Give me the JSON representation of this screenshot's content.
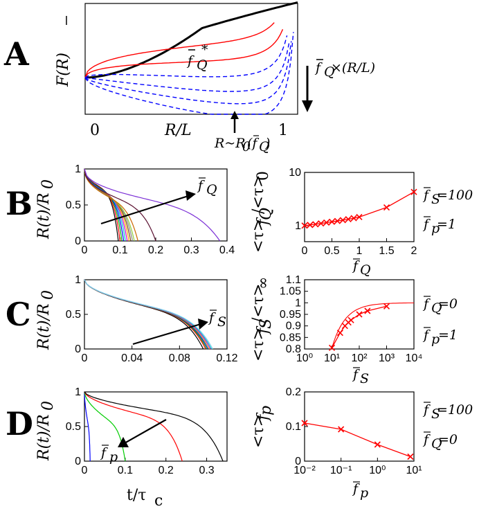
{
  "colors": {
    "red": "#ff0000",
    "blue": "#0000ff",
    "black": "#000000",
    "green": "#00cc00",
    "purple": "#7b2fd6"
  },
  "panels": {
    "A": "A",
    "B": "B",
    "C": "C",
    "D": "D"
  },
  "panelA": {
    "ylabel": "F(R)",
    "xlabel": "R/L",
    "x0": "0",
    "x1": "1",
    "curve_label": "f",
    "curve_label_sub": "Q",
    "curve_label_sup": "*",
    "arrow_label_f": "f",
    "arrow_label_sub": "Q",
    "arrow_label_rest": "×(R/L)",
    "min_label_a": "R~R",
    "min_label_sub": "0",
    "min_label_b": "(f",
    "min_label_sub2": "Q",
    "min_label_c": ")"
  },
  "params": {
    "B_fs": "f",
    "B_fs_sub": "S",
    "B_fs_val": "=100",
    "B_fp": "f",
    "B_fp_sub": "p",
    "B_fp_val": "=1",
    "C_fq": "f",
    "C_fq_sub": "Q",
    "C_fq_val": "=0",
    "C_fp": "f",
    "C_fp_sub": "p",
    "C_fp_val": "=1",
    "D_fs": "f",
    "D_fs_sub": "S",
    "D_fs_val": "=100",
    "D_fq": "f",
    "D_fq_sub": "Q",
    "D_fq_val": "=0"
  },
  "arrow_labels": {
    "B": "f",
    "B_sub": "Q",
    "C": "f",
    "C_sub": "S",
    "D": "f",
    "D_sub": "p"
  },
  "left_ylabel": "R(t)/R",
  "left_ylabel_sub": "0",
  "bottom_xlabel": "t/τ",
  "bottom_xlabel_sub": "c",
  "right_ylabels": {
    "B": "<τ>",
    "B_sub": "f",
    "B_sub2": "Q",
    "B_mid": "/<τ>",
    "B_end": "0",
    "C": "<τ>",
    "C_sub": "f",
    "C_sub2": "S",
    "C_mid": "/<τ>",
    "C_end": "∞",
    "D": "<τ>",
    "D_sub": "f",
    "D_sub2": "p"
  },
  "right_xlabels": {
    "B": "f",
    "B_sub": "Q",
    "C": "f",
    "C_sub": "S",
    "D": "f",
    "D_sub": "p"
  },
  "chart_data": [
    {
      "id": "B_right",
      "type": "line",
      "xlabel": "f_Q",
      "ylabel": "<τ>_fQ/<τ>_0",
      "yscale": "log",
      "xlim": [
        0,
        2
      ],
      "ylim": [
        0.5,
        10
      ],
      "x_ticks": [
        "0",
        "0.5",
        "1",
        "1.5",
        "2"
      ],
      "y_ticks": [
        "1",
        "10"
      ],
      "x": [
        0,
        0.1,
        0.2,
        0.3,
        0.4,
        0.5,
        0.6,
        0.7,
        0.8,
        0.9,
        1.0,
        1.5,
        2.0
      ],
      "y": [
        1.0,
        1.03,
        1.06,
        1.1,
        1.14,
        1.18,
        1.22,
        1.27,
        1.32,
        1.38,
        1.45,
        2.2,
        4.3
      ]
    },
    {
      "id": "C_right",
      "type": "line",
      "xlabel": "f_S",
      "ylabel": "<τ>_fS/<τ>_∞",
      "xscale": "log",
      "xlim": [
        1,
        10000
      ],
      "ylim": [
        0.8,
        1.1
      ],
      "x_ticks": [
        "10⁰",
        "10¹",
        "10²",
        "10³",
        "10⁴"
      ],
      "y_ticks": [
        "0.8",
        "0.85",
        "0.9",
        "0.95",
        "1",
        "1.05",
        "1.1"
      ],
      "x": [
        10,
        20,
        30,
        40,
        50,
        100,
        200,
        1000
      ],
      "y": [
        0.805,
        0.87,
        0.9,
        0.915,
        0.925,
        0.95,
        0.965,
        0.985
      ]
    },
    {
      "id": "D_right",
      "type": "line",
      "xlabel": "f_p",
      "ylabel": "<τ>_fp",
      "xscale": "log",
      "xlim": [
        0.01,
        10
      ],
      "ylim": [
        0,
        0.2
      ],
      "x_ticks": [
        "10⁻²",
        "10⁻¹",
        "10⁰",
        "10¹"
      ],
      "y_ticks": [
        "0",
        "0.1",
        "0.2"
      ],
      "x": [
        0.01,
        0.1,
        1,
        8
      ],
      "y": [
        0.11,
        0.092,
        0.048,
        0.013
      ]
    },
    {
      "id": "B_left",
      "type": "line",
      "xlim": [
        0,
        0.4
      ],
      "ylim": [
        0,
        1
      ],
      "x_ticks": [
        "0",
        "0.1",
        "0.2",
        "0.3",
        "0.4"
      ],
      "y_ticks": [
        "0",
        "0.5",
        "1"
      ],
      "series_end_times": [
        0.095,
        0.1,
        0.105,
        0.11,
        0.115,
        0.12,
        0.125,
        0.13,
        0.135,
        0.14,
        0.15,
        0.2,
        0.38
      ]
    },
    {
      "id": "C_left",
      "type": "line",
      "xlim": [
        0,
        0.12
      ],
      "ylim": [
        0,
        1
      ],
      "x_ticks": [
        "0",
        "0.04",
        "0.08",
        "0.12"
      ],
      "y_ticks": [
        "0",
        "0.5",
        "1"
      ],
      "series_end_times": [
        0.1,
        0.102,
        0.103,
        0.104,
        0.105,
        0.106,
        0.107,
        0.108
      ]
    },
    {
      "id": "D_left",
      "type": "line",
      "xlim": [
        0,
        0.35
      ],
      "ylim": [
        0,
        1
      ],
      "x_ticks": [
        "0",
        "0.1",
        "0.2",
        "0.3"
      ],
      "y_ticks": [
        "0",
        "0.5",
        "1"
      ],
      "series_end_times": [
        0.014,
        0.1,
        0.24,
        0.34
      ]
    }
  ]
}
